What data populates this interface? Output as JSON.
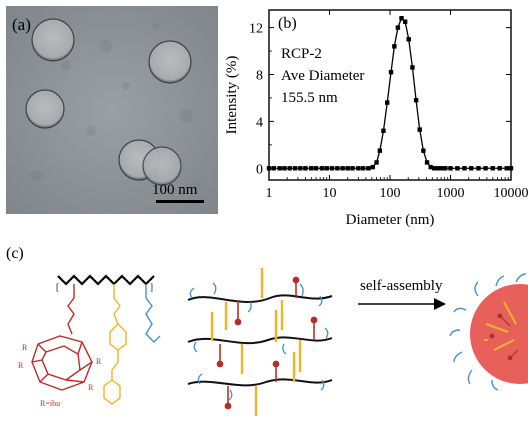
{
  "panel_a": {
    "label": "(a)",
    "scale_bar": "100 nm"
  },
  "panel_b": {
    "label": "(b)",
    "annotation_lines": [
      "RCP-2",
      "Ave Diameter",
      "155.5 nm"
    ]
  },
  "panel_c": {
    "label": "(c)",
    "arrow_label": "self-assembly",
    "chem_labels": {
      "r_label": "R",
      "r_ibu": "R=ibu"
    }
  },
  "colors": {
    "polymer_red": "#b3302a",
    "polymer_yellow": "#f0b429",
    "polymer_blue": "#4a90c8",
    "micelle_core": "#e8605a"
  },
  "chart_data": {
    "type": "line",
    "xlabel": "Diameter (nm)",
    "ylabel": "Intensity (%)",
    "x_scale": "log",
    "xlim": [
      1,
      10000
    ],
    "ylim": [
      -1,
      13.5
    ],
    "x_ticks": [
      {
        "value": 1,
        "label": "1"
      },
      {
        "value": 10,
        "label": "10"
      },
      {
        "value": 100,
        "label": "100"
      },
      {
        "value": 1000,
        "label": "1000"
      },
      {
        "value": 10000,
        "label": "10000"
      }
    ],
    "y_ticks": [
      {
        "value": 0,
        "label": "0"
      },
      {
        "value": 4,
        "label": "4"
      },
      {
        "value": 8,
        "label": "8"
      },
      {
        "value": 12,
        "label": "12"
      }
    ],
    "series": [
      {
        "color": "#000000",
        "marker": "square",
        "x": [
          1,
          1.2,
          1.5,
          1.8,
          2.2,
          2.7,
          3.3,
          4,
          5,
          6,
          7.5,
          9,
          11,
          13.5,
          16.5,
          20,
          24,
          30,
          36,
          44,
          52,
          60,
          68,
          78,
          90,
          104,
          118,
          135,
          155,
          178,
          204,
          235,
          270,
          310,
          356,
          410,
          470,
          540,
          620,
          710,
          820,
          1000,
          1300,
          1700,
          2200,
          2900,
          3800,
          5000,
          6500,
          8500,
          10000
        ],
        "y": [
          0,
          0,
          0,
          0,
          0,
          0,
          0,
          0,
          0,
          0,
          0,
          0,
          0,
          0,
          0,
          0,
          0,
          0,
          0,
          0,
          0.1,
          0.5,
          1.5,
          3.2,
          5.6,
          8.2,
          10.4,
          12.0,
          12.8,
          12.5,
          11.0,
          8.6,
          5.8,
          3.3,
          1.5,
          0.5,
          0.1,
          0,
          0,
          0,
          0,
          0,
          0,
          0,
          0,
          0,
          0,
          0,
          0,
          0,
          0
        ]
      }
    ]
  }
}
